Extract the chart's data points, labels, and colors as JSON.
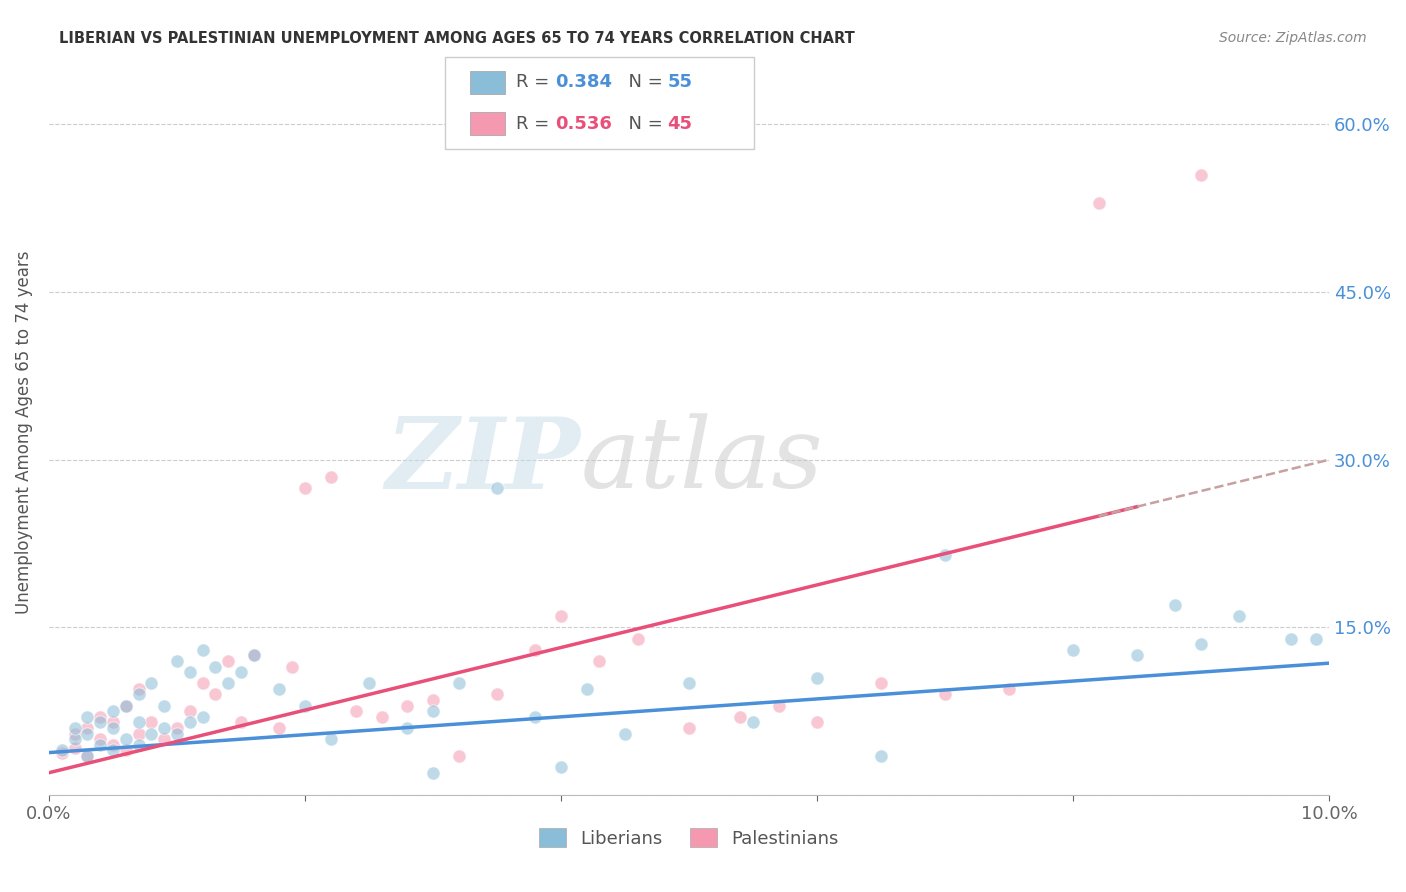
{
  "title": "LIBERIAN VS PALESTINIAN UNEMPLOYMENT AMONG AGES 65 TO 74 YEARS CORRELATION CHART",
  "source": "Source: ZipAtlas.com",
  "ylabel": "Unemployment Among Ages 65 to 74 years",
  "xlim": [
    0.0,
    0.1
  ],
  "ylim": [
    0.0,
    0.65
  ],
  "yticks": [
    0.0,
    0.15,
    0.3,
    0.45,
    0.6
  ],
  "ytick_labels": [
    "",
    "15.0%",
    "30.0%",
    "45.0%",
    "60.0%"
  ],
  "xticks": [
    0.0,
    0.02,
    0.04,
    0.06,
    0.08,
    0.1
  ],
  "xtick_labels": [
    "0.0%",
    "",
    "",
    "",
    "",
    "10.0%"
  ],
  "blue_color": "#89bdd8",
  "pink_color": "#f599b0",
  "blue_line_color": "#4a90d9",
  "pink_line_color": "#e8507a",
  "dashed_line_color": "#c8a0a0",
  "watermark_color": "#d8e8f0",
  "liberian_x": [
    0.001,
    0.002,
    0.002,
    0.003,
    0.003,
    0.003,
    0.004,
    0.004,
    0.005,
    0.005,
    0.005,
    0.006,
    0.006,
    0.007,
    0.007,
    0.007,
    0.008,
    0.008,
    0.009,
    0.009,
    0.01,
    0.01,
    0.011,
    0.011,
    0.012,
    0.012,
    0.013,
    0.014,
    0.015,
    0.016,
    0.018,
    0.02,
    0.022,
    0.025,
    0.028,
    0.03,
    0.03,
    0.032,
    0.035,
    0.038,
    0.04,
    0.042,
    0.045,
    0.05,
    0.055,
    0.06,
    0.065,
    0.07,
    0.08,
    0.085,
    0.088,
    0.09,
    0.093,
    0.097,
    0.099
  ],
  "liberian_y": [
    0.04,
    0.05,
    0.06,
    0.035,
    0.055,
    0.07,
    0.045,
    0.065,
    0.04,
    0.06,
    0.075,
    0.05,
    0.08,
    0.045,
    0.065,
    0.09,
    0.055,
    0.1,
    0.06,
    0.08,
    0.055,
    0.12,
    0.065,
    0.11,
    0.07,
    0.13,
    0.115,
    0.1,
    0.11,
    0.125,
    0.095,
    0.08,
    0.05,
    0.1,
    0.06,
    0.02,
    0.075,
    0.1,
    0.275,
    0.07,
    0.025,
    0.095,
    0.055,
    0.1,
    0.065,
    0.105,
    0.035,
    0.215,
    0.13,
    0.125,
    0.17,
    0.135,
    0.16,
    0.14,
    0.14
  ],
  "palestinian_x": [
    0.001,
    0.002,
    0.002,
    0.003,
    0.003,
    0.004,
    0.004,
    0.005,
    0.005,
    0.006,
    0.006,
    0.007,
    0.007,
    0.008,
    0.009,
    0.01,
    0.011,
    0.012,
    0.013,
    0.014,
    0.015,
    0.016,
    0.018,
    0.019,
    0.02,
    0.022,
    0.024,
    0.026,
    0.028,
    0.03,
    0.032,
    0.035,
    0.038,
    0.04,
    0.043,
    0.046,
    0.05,
    0.054,
    0.057,
    0.06,
    0.065,
    0.07,
    0.075,
    0.082,
    0.09
  ],
  "palestinian_y": [
    0.038,
    0.042,
    0.055,
    0.035,
    0.06,
    0.05,
    0.07,
    0.045,
    0.065,
    0.04,
    0.08,
    0.055,
    0.095,
    0.065,
    0.05,
    0.06,
    0.075,
    0.1,
    0.09,
    0.12,
    0.065,
    0.125,
    0.06,
    0.115,
    0.275,
    0.285,
    0.075,
    0.07,
    0.08,
    0.085,
    0.035,
    0.09,
    0.13,
    0.16,
    0.12,
    0.14,
    0.06,
    0.07,
    0.08,
    0.065,
    0.1,
    0.09,
    0.095,
    0.53,
    0.555
  ],
  "trend_blue_slope": 0.8,
  "trend_blue_intercept": 0.038,
  "trend_pink_slope": 2.8,
  "trend_pink_intercept": 0.02,
  "dashed_slope": 2.8,
  "dashed_intercept": 0.02,
  "background_color": "#ffffff"
}
